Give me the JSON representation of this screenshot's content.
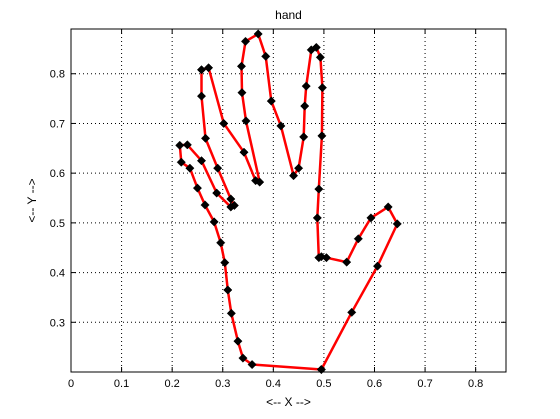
{
  "chart_data": {
    "type": "line",
    "title": "hand",
    "xlabel": "<-- X -->",
    "ylabel": "<-- Y -->",
    "xlim": [
      0,
      0.86
    ],
    "ylim": [
      0.2,
      0.89
    ],
    "x_ticks": [
      0,
      0.1,
      0.2,
      0.3,
      0.4,
      0.5,
      0.6,
      0.7,
      0.8
    ],
    "x_tick_labels": [
      "0",
      "0.1",
      "0.2",
      "0.3",
      "0.4",
      "0.5",
      "0.6",
      "0.7",
      "0.8"
    ],
    "y_ticks": [
      0.3,
      0.4,
      0.5,
      0.6,
      0.7,
      0.8
    ],
    "y_tick_labels": [
      "0.3",
      "0.4",
      "0.5",
      "0.6",
      "0.7",
      "0.8"
    ],
    "grid": true,
    "grid_style": "dotted",
    "legend": "none",
    "series": [
      {
        "line_color": "#ff0000",
        "marker_color": "#000000",
        "marker": "diamond",
        "x": [
          0.495,
          0.358,
          0.34,
          0.33,
          0.317,
          0.31,
          0.304,
          0.296,
          0.283,
          0.265,
          0.25,
          0.235,
          0.218,
          0.215,
          0.23,
          0.258,
          0.288,
          0.316,
          0.323,
          0.316,
          0.29,
          0.266,
          0.258,
          0.258,
          0.272,
          0.302,
          0.342,
          0.365,
          0.373,
          0.346,
          0.338,
          0.337,
          0.345,
          0.37,
          0.385,
          0.396,
          0.415,
          0.44,
          0.45,
          0.46,
          0.462,
          0.465,
          0.475,
          0.485,
          0.493,
          0.497,
          0.496,
          0.49,
          0.487,
          0.49,
          0.495,
          0.505,
          0.545,
          0.568,
          0.593,
          0.627,
          0.645,
          0.606,
          0.555,
          0.495
        ],
        "y": [
          0.205,
          0.215,
          0.228,
          0.262,
          0.318,
          0.365,
          0.42,
          0.46,
          0.502,
          0.536,
          0.57,
          0.61,
          0.622,
          0.656,
          0.657,
          0.625,
          0.56,
          0.532,
          0.535,
          0.548,
          0.61,
          0.67,
          0.755,
          0.808,
          0.812,
          0.7,
          0.642,
          0.585,
          0.582,
          0.705,
          0.762,
          0.815,
          0.865,
          0.88,
          0.835,
          0.745,
          0.695,
          0.595,
          0.61,
          0.673,
          0.735,
          0.775,
          0.848,
          0.853,
          0.833,
          0.772,
          0.675,
          0.568,
          0.51,
          0.43,
          0.432,
          0.43,
          0.421,
          0.468,
          0.51,
          0.532,
          0.498,
          0.413,
          0.32,
          0.205
        ]
      }
    ]
  }
}
